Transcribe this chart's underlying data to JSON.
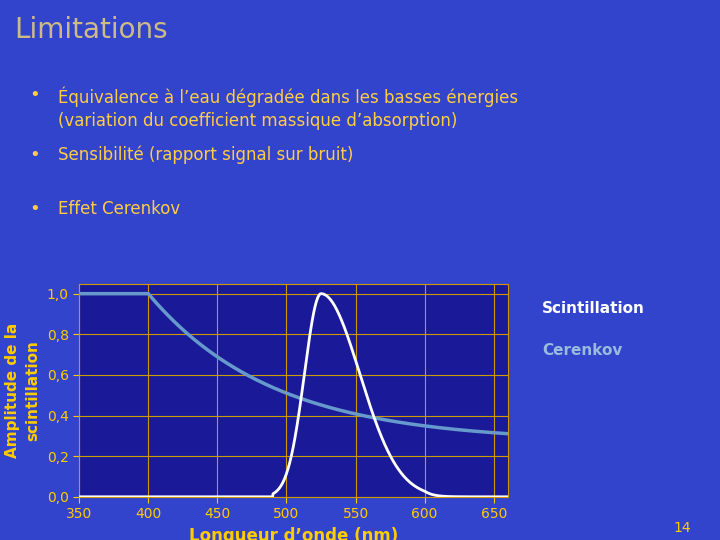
{
  "background_color": "#3344cc",
  "title": "Limitations",
  "title_color": "#ccbb88",
  "title_fontsize": 20,
  "bullet_color": "#ffcc44",
  "bullet_text": [
    "Équivalence à l’eau dégradée dans les basses énergies\n(variation du coefficient massique d’absorption)",
    "Sensibilité (rapport signal sur bruit)",
    "Effet Cerenkov"
  ],
  "plot_bg_color": "#1a1a99",
  "plot_grid_color": "#cc9900",
  "xlabel": "Longueur d’onde (nm)",
  "ylabel": "Amplitude de la\nscintillation",
  "xlabel_color": "#ffcc00",
  "ylabel_color": "#ffcc00",
  "tick_label_color": "#ffcc00",
  "tick_color": "#ffcc00",
  "xlim": [
    350,
    660
  ],
  "ylim": [
    0.0,
    1.05
  ],
  "xticks": [
    350,
    400,
    450,
    500,
    550,
    600,
    650
  ],
  "yticks": [
    0.0,
    0.2,
    0.4,
    0.6,
    0.8,
    1.0
  ],
  "ytick_labels": [
    "0,0",
    "0,2",
    "0,4",
    "0,6",
    "0,8",
    "1,0"
  ],
  "cerenkov_color": "#6699cc",
  "scintillation_color": "#ffffff",
  "legend_box_color": "#0a0a99",
  "legend_label_scintillation": "Scintillation",
  "legend_label_cerenkov": "Cerenkov",
  "legend_scintillation_color": "#ffffff",
  "legend_cerenkov_color": "#99bbdd",
  "page_number": "14"
}
